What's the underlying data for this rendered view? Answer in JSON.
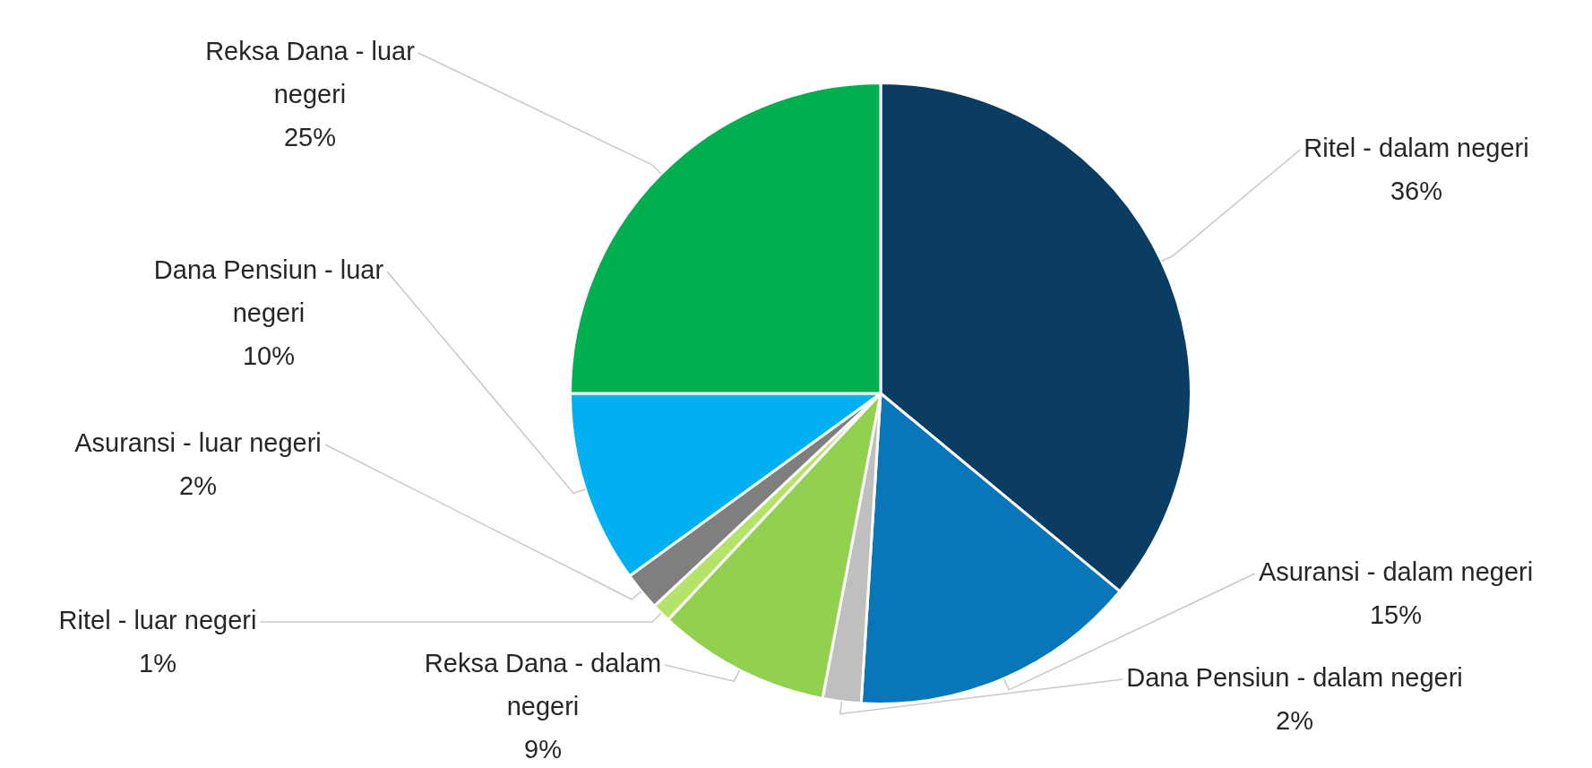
{
  "chart_data": {
    "type": "pie",
    "categories": [
      "Ritel - dalam negeri",
      "Asuransi - dalam negeri",
      "Dana Pensiun - dalam negeri",
      "Reksa Dana - dalam negeri",
      "Ritel - luar negeri",
      "Asuransi - luar negeri",
      "Dana Pensiun - luar negeri",
      "Reksa Dana - luar negeri"
    ],
    "values": [
      36,
      15,
      2,
      9,
      1,
      2,
      10,
      25
    ],
    "colors": [
      "#0b3d63",
      "#0a76ba",
      "#bfbfbf",
      "#92d050",
      "#b5e36a",
      "#7f7f7f",
      "#00b0f0",
      "#00b050"
    ],
    "value_labels": [
      "36%",
      "15%",
      "2%",
      "9%",
      "1%",
      "2%",
      "10%",
      "25%"
    ],
    "legend": false
  }
}
